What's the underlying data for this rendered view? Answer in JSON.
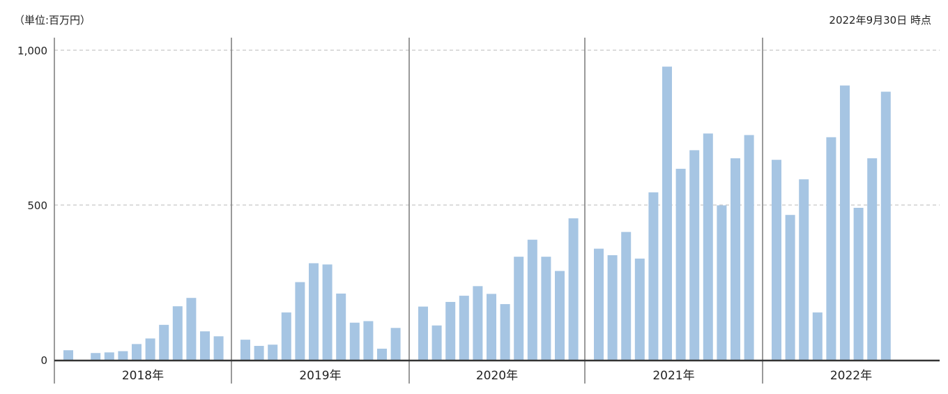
{
  "header": {
    "unit_note": "（単位:百万円）",
    "as_of": "2022年9月30日 時点"
  },
  "chart_data": {
    "type": "bar",
    "title": "",
    "xlabel": "",
    "ylabel": "",
    "unit": "百万円",
    "ylim": [
      0,
      1000
    ],
    "y_ticks": [
      {
        "value": 0,
        "label": "0"
      },
      {
        "value": 500,
        "label": "500"
      },
      {
        "value": 1000,
        "label": "1,000"
      }
    ],
    "grid": "horizontal dashed",
    "bar_color": "#a6c5e3",
    "groups": [
      {
        "label": "2018年",
        "values": [
          31,
          0,
          22,
          24,
          28,
          51,
          69,
          113,
          173,
          200,
          92,
          76
        ]
      },
      {
        "label": "2019年",
        "values": [
          65,
          45,
          49,
          153,
          251,
          312,
          308,
          214,
          120,
          125,
          36,
          103
        ]
      },
      {
        "label": "2020年",
        "values": [
          172,
          111,
          187,
          207,
          238,
          213,
          180,
          333,
          388,
          333,
          287,
          457
        ]
      },
      {
        "label": "2021年",
        "values": [
          359,
          338,
          413,
          327,
          541,
          947,
          617,
          677,
          731,
          499,
          651,
          726
        ]
      },
      {
        "label": "2022年",
        "values": [
          646,
          468,
          583,
          153,
          719,
          886,
          491,
          651,
          866
        ]
      }
    ]
  }
}
